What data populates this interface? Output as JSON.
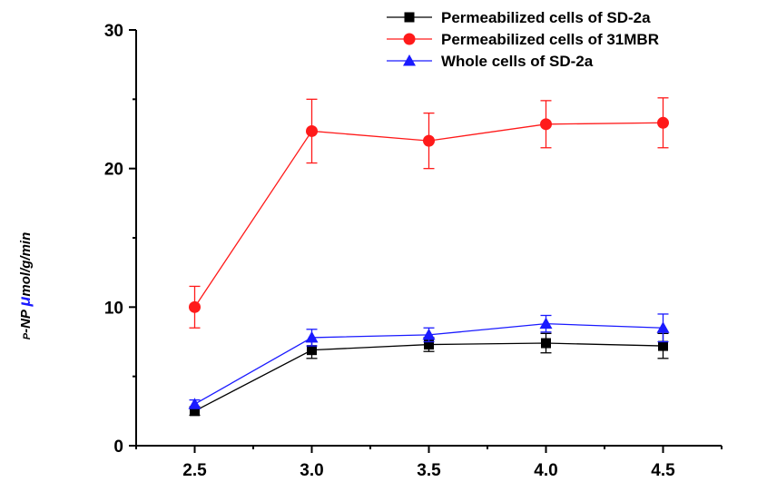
{
  "chart_data": {
    "type": "line",
    "ylabel_parts": {
      "prefix": "P",
      "mid": "-NP ",
      "mu": "μ",
      "suffix": "mol/g/min"
    },
    "xlim": [
      2.25,
      4.75
    ],
    "ylim": [
      0,
      30
    ],
    "x_ticks": [
      "2.5",
      "3.0",
      "3.5",
      "4.0",
      "4.5"
    ],
    "x_tick_values": [
      2.5,
      3.0,
      3.5,
      4.0,
      4.5
    ],
    "y_ticks": [
      "0",
      "10",
      "20",
      "30"
    ],
    "y_tick_values": [
      0,
      10,
      20,
      30
    ],
    "grid": false,
    "legend_position": "top-right",
    "series": [
      {
        "name": "Permeabilized cells of SD-2a",
        "color": "#000000",
        "marker": "square",
        "x": [
          2.5,
          3.0,
          3.5,
          4.0,
          4.5
        ],
        "y": [
          2.5,
          6.9,
          7.3,
          7.4,
          7.2
        ],
        "err": [
          0.3,
          0.6,
          0.5,
          0.7,
          0.9
        ]
      },
      {
        "name": "Permeabilized cells of 31MBR",
        "color": "#ff1a1a",
        "marker": "circle",
        "x": [
          2.5,
          3.0,
          3.5,
          4.0,
          4.5
        ],
        "y": [
          10.0,
          22.7,
          22.0,
          23.2,
          23.3
        ],
        "err": [
          1.5,
          2.3,
          2.0,
          1.7,
          1.8
        ]
      },
      {
        "name": "Whole cells of SD-2a",
        "color": "#1a1aff",
        "marker": "triangle",
        "x": [
          2.5,
          3.0,
          3.5,
          4.0,
          4.5
        ],
        "y": [
          3.0,
          7.8,
          8.0,
          8.8,
          8.5
        ],
        "err": [
          0.3,
          0.6,
          0.5,
          0.6,
          1.0
        ]
      }
    ]
  }
}
